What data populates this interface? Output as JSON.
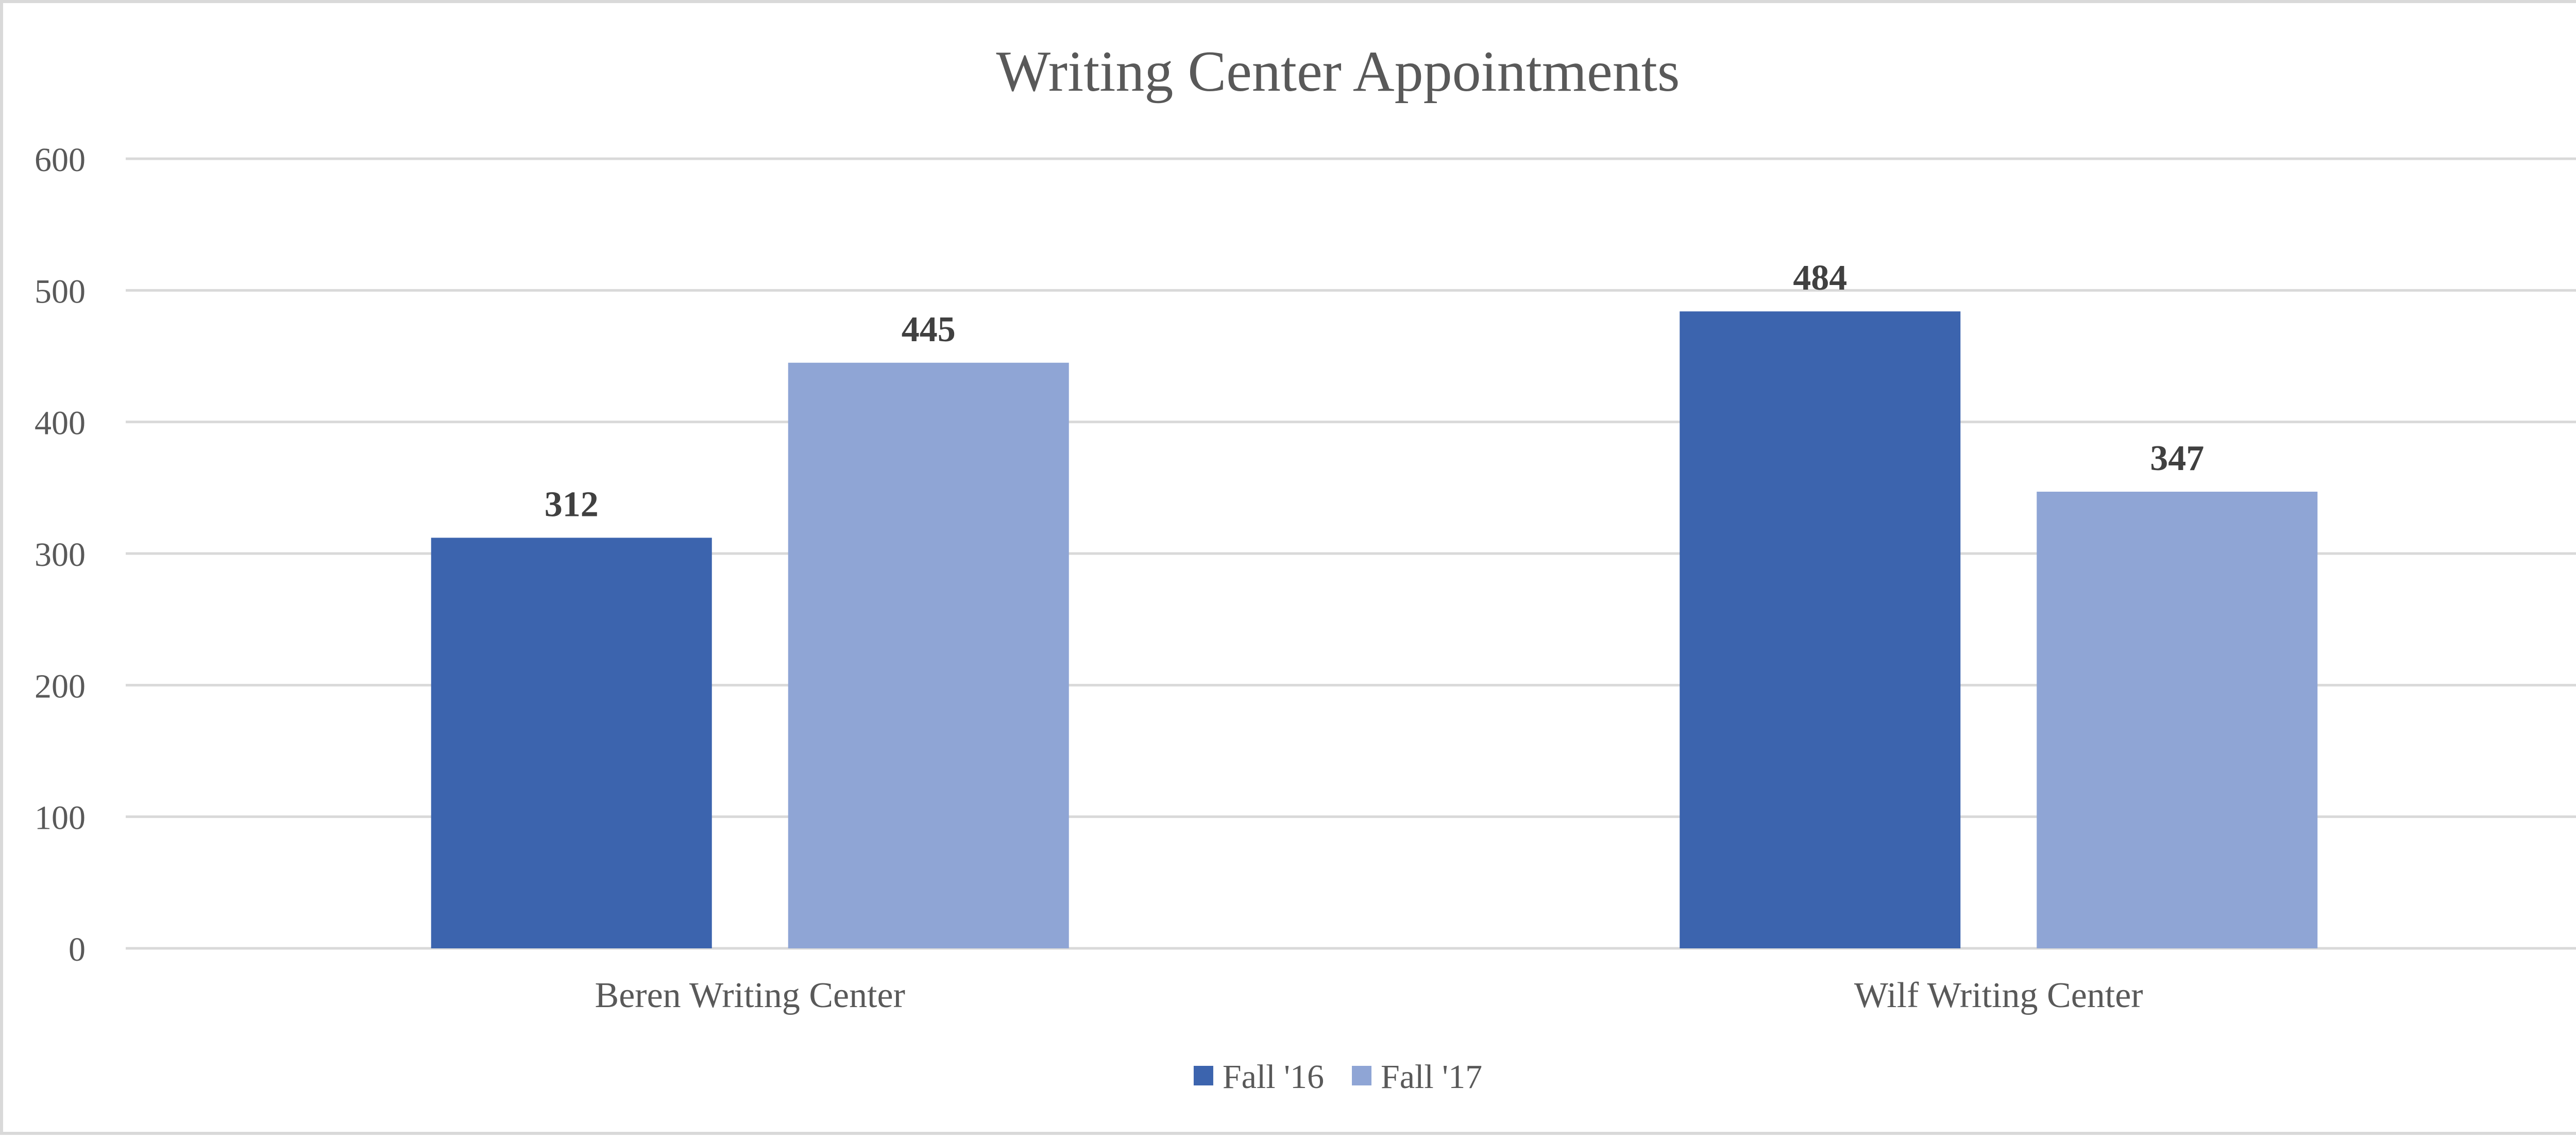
{
  "chart_data": {
    "type": "bar",
    "title": "Writing Center Appointments",
    "xlabel": "",
    "ylabel": "",
    "categories": [
      "Beren Writing Center",
      "Wilf Writing Center"
    ],
    "series": [
      {
        "name": "Fall '16",
        "values": [
          312,
          484
        ],
        "color": "#3c64ae"
      },
      {
        "name": "Fall '17",
        "values": [
          445,
          347
        ],
        "color": "#8fa5d5"
      }
    ],
    "ylim": [
      0,
      600
    ],
    "yticks": [
      0,
      100,
      200,
      300,
      400,
      500,
      600
    ],
    "grid": true,
    "legend": "bottom-center",
    "data_labels": true
  }
}
